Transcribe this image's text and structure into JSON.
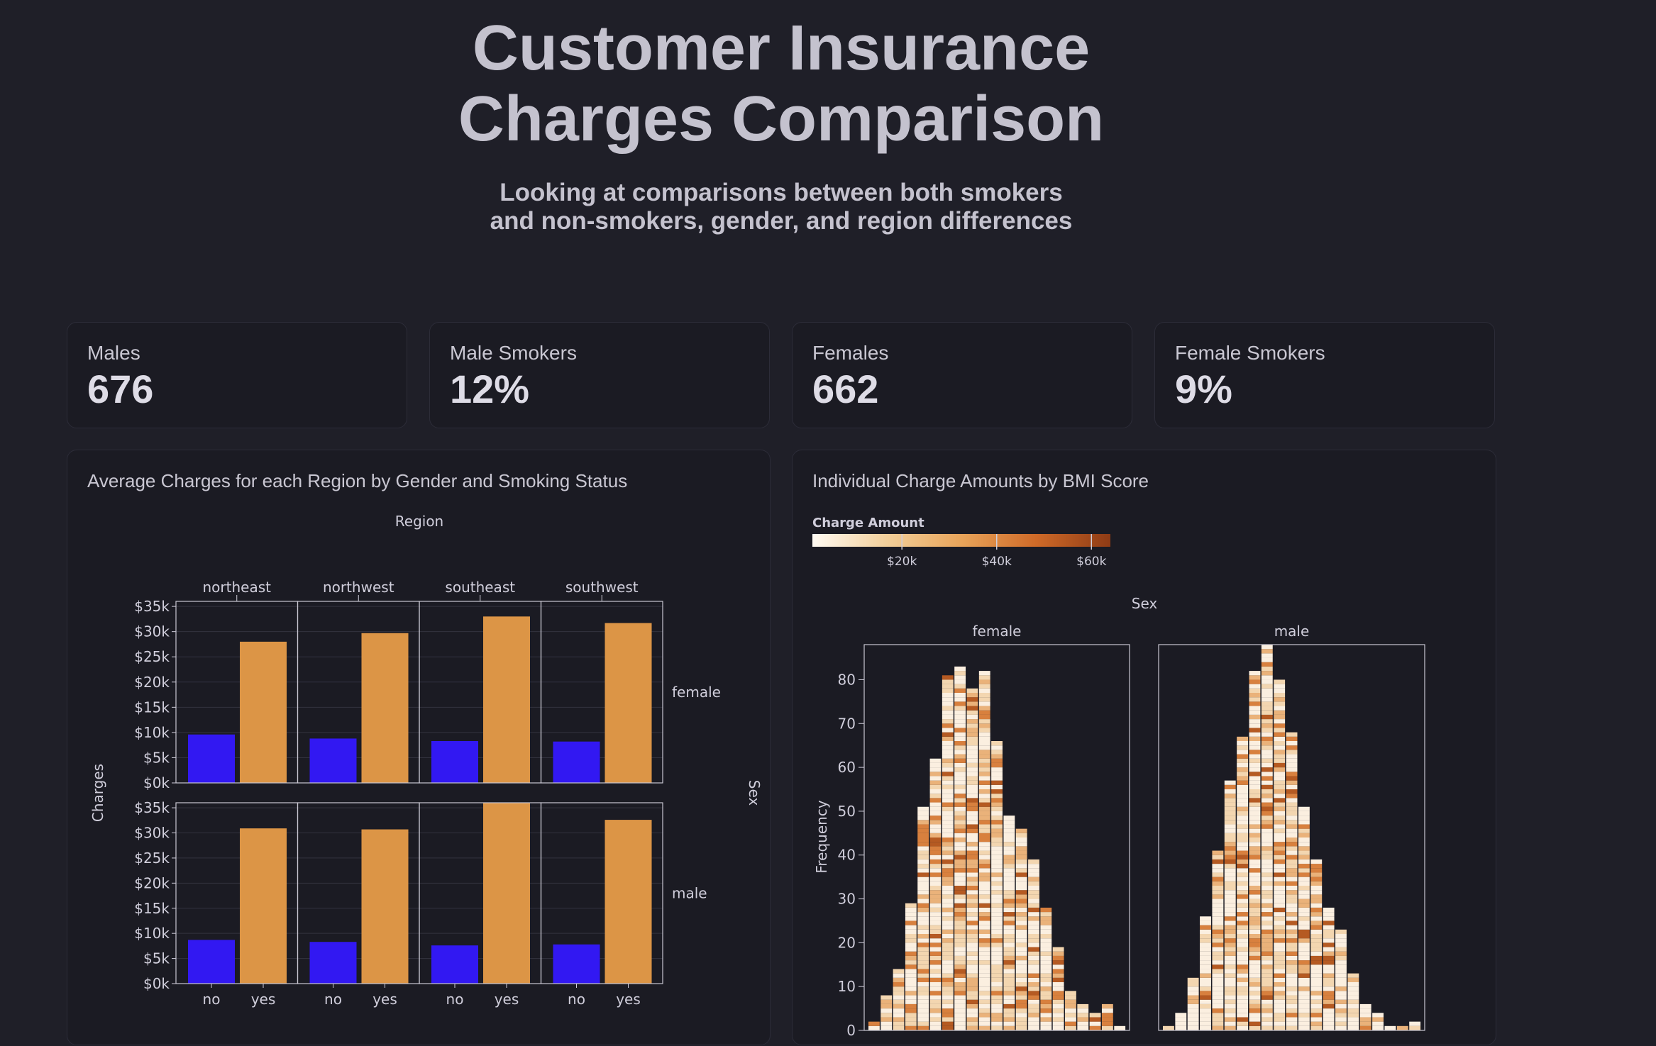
{
  "header": {
    "title_line1": "Customer Insurance",
    "title_line2": "Charges Comparison",
    "subtitle_line1": "Looking at comparisons between both smokers",
    "subtitle_line2": "and non-smokers, gender, and region differences"
  },
  "kpis": [
    {
      "label": "Males",
      "value": "676"
    },
    {
      "label": "Male Smokers",
      "value": "12%"
    },
    {
      "label": "Females",
      "value": "662"
    },
    {
      "label": "Female Smokers",
      "value": "9%"
    }
  ],
  "panels": {
    "left_title": "Average Charges for each Region by Gender and Smoking Status",
    "right_title": "Individual Charge Amounts by BMI Score"
  },
  "colors": {
    "non_smoker": "#3218f2",
    "smoker": "#dc9546",
    "panel_bg": "#1b1b23",
    "page_bg": "#1f1f28"
  },
  "chart_data": [
    {
      "type": "bar",
      "title": "Average Charges for each Region by Gender and Smoking Status",
      "column_facet_label": "Region",
      "row_facet_label": "Sex",
      "ylabel": "Charges",
      "columns": [
        "northeast",
        "northwest",
        "southeast",
        "southwest"
      ],
      "rows": [
        "female",
        "male"
      ],
      "categories": [
        "no",
        "yes"
      ],
      "ylim": [
        0,
        36000
      ],
      "y_ticks": [
        {
          "value": 0,
          "label": "$0k"
        },
        {
          "value": 5000,
          "label": "$5k"
        },
        {
          "value": 10000,
          "label": "$10k"
        },
        {
          "value": 15000,
          "label": "$15k"
        },
        {
          "value": 20000,
          "label": "$20k"
        },
        {
          "value": 25000,
          "label": "$25k"
        },
        {
          "value": 30000,
          "label": "$30k"
        },
        {
          "value": 35000,
          "label": "$35k"
        }
      ],
      "values": {
        "female": {
          "northeast": [
            9600,
            28000
          ],
          "northwest": [
            8800,
            29700
          ],
          "southeast": [
            8300,
            33000
          ],
          "southwest": [
            8200,
            31700
          ]
        },
        "male": {
          "northeast": [
            8700,
            30900
          ],
          "northwest": [
            8300,
            30700
          ],
          "southeast": [
            7600,
            36300
          ],
          "southwest": [
            7800,
            32600
          ]
        }
      }
    },
    {
      "type": "histogram",
      "title": "Individual Charge Amounts by BMI Score",
      "column_facet_label": "Sex",
      "ylabel": "Frequency",
      "color_legend_title": "Charge Amount",
      "color_ticks": [
        "$20k",
        "$40k",
        "$60k"
      ],
      "color_tick_values": [
        20000,
        40000,
        60000
      ],
      "color_range": [
        1100,
        64000
      ],
      "color_stops": [
        "#fffaf2",
        "#f2cf9a",
        "#e8a45a",
        "#cf6a28",
        "#8e3b15"
      ],
      "ylim": [
        0,
        88
      ],
      "y_ticks": [
        0,
        10,
        20,
        30,
        40,
        50,
        60,
        70,
        80
      ],
      "panels": [
        "female",
        "male"
      ],
      "frequencies": {
        "female": [
          2,
          8,
          14,
          29,
          51,
          62,
          81,
          83,
          78,
          82,
          66,
          49,
          46,
          39,
          28,
          19,
          9,
          6,
          4,
          6,
          1
        ],
        "male": [
          1,
          4,
          12,
          26,
          41,
          57,
          67,
          82,
          88,
          80,
          68,
          51,
          39,
          28,
          23,
          13,
          6,
          4,
          1,
          1,
          2
        ]
      }
    }
  ]
}
